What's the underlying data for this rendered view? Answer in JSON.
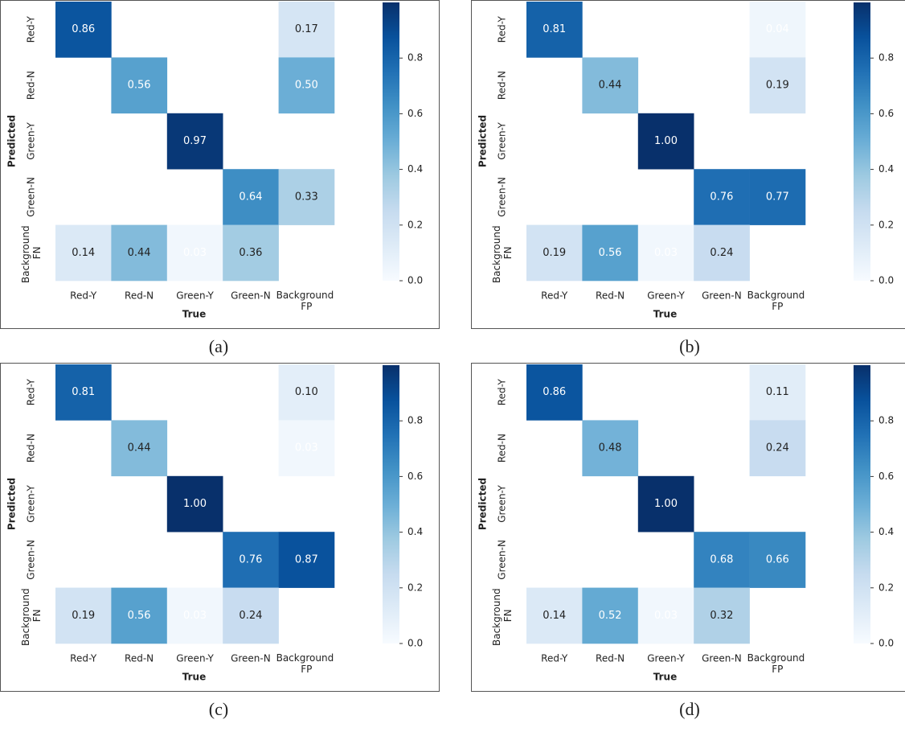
{
  "chart_data": [
    {
      "type": "heatmap",
      "caption": "(a)",
      "x_label": "True",
      "y_label": "Predicted",
      "colormap": "Blues",
      "x_categories": [
        "Red-Y",
        "Red-N",
        "Green-Y",
        "Green-N",
        "Background FP"
      ],
      "y_categories": [
        "Red-Y",
        "Red-N",
        "Green-Y",
        "Green-N",
        "Background FN"
      ],
      "values": [
        [
          0.86,
          null,
          null,
          null,
          0.17
        ],
        [
          null,
          0.56,
          null,
          null,
          0.5
        ],
        [
          null,
          null,
          0.97,
          null,
          null
        ],
        [
          null,
          null,
          null,
          0.64,
          0.33
        ],
        [
          0.14,
          0.44,
          0.03,
          0.36,
          null
        ]
      ],
      "value_labels": [
        [
          "0.86",
          null,
          null,
          null,
          "0.17"
        ],
        [
          null,
          "0.56",
          null,
          null,
          "0.50"
        ],
        [
          null,
          null,
          "0.97",
          null,
          null
        ],
        [
          null,
          null,
          null,
          "0.64",
          "0.33"
        ],
        [
          "0.14",
          "0.44",
          "0.03",
          "0.36",
          null
        ]
      ],
      "zlim": [
        0,
        1
      ],
      "colorbar_ticks": [
        {
          "value": 0,
          "label": "0.0"
        },
        {
          "value": 0.2,
          "label": "0.2"
        },
        {
          "value": 0.4,
          "label": "0.4"
        },
        {
          "value": 0.6,
          "label": "0.6"
        },
        {
          "value": 0.8,
          "label": "0.8"
        }
      ]
    },
    {
      "type": "heatmap",
      "caption": "(b)",
      "x_label": "True",
      "y_label": "Predicted",
      "colormap": "Blues",
      "x_categories": [
        "Red-Y",
        "Red-N",
        "Green-Y",
        "Green-N",
        "Background FP"
      ],
      "y_categories": [
        "Red-Y",
        "Red-N",
        "Green-Y",
        "Green-N",
        "Background FN"
      ],
      "values": [
        [
          0.81,
          null,
          null,
          null,
          0.04
        ],
        [
          null,
          0.44,
          null,
          null,
          0.19
        ],
        [
          null,
          null,
          1,
          null,
          null
        ],
        [
          null,
          null,
          null,
          0.76,
          0.77
        ],
        [
          0.19,
          0.56,
          0.03,
          0.24,
          null
        ]
      ],
      "value_labels": [
        [
          "0.81",
          null,
          null,
          null,
          "0.04"
        ],
        [
          null,
          "0.44",
          null,
          null,
          "0.19"
        ],
        [
          null,
          null,
          "1.00",
          null,
          null
        ],
        [
          null,
          null,
          null,
          "0.76",
          "0.77"
        ],
        [
          "0.19",
          "0.56",
          "0.03",
          "0.24",
          null
        ]
      ],
      "zlim": [
        0,
        1
      ],
      "colorbar_ticks": [
        {
          "value": 0,
          "label": "0.0"
        },
        {
          "value": 0.2,
          "label": "0.2"
        },
        {
          "value": 0.4,
          "label": "0.4"
        },
        {
          "value": 0.6,
          "label": "0.6"
        },
        {
          "value": 0.8,
          "label": "0.8"
        }
      ]
    },
    {
      "type": "heatmap",
      "caption": "(c)",
      "x_label": "True",
      "y_label": "Predicted",
      "colormap": "Blues",
      "x_categories": [
        "Red-Y",
        "Red-N",
        "Green-Y",
        "Green-N",
        "Background FP"
      ],
      "y_categories": [
        "Red-Y",
        "Red-N",
        "Green-Y",
        "Green-N",
        "Background FN"
      ],
      "values": [
        [
          0.81,
          null,
          null,
          null,
          0.1
        ],
        [
          null,
          0.44,
          null,
          null,
          0.03
        ],
        [
          null,
          null,
          1,
          null,
          null
        ],
        [
          null,
          null,
          null,
          0.76,
          0.87
        ],
        [
          0.19,
          0.56,
          0.03,
          0.24,
          null
        ]
      ],
      "value_labels": [
        [
          "0.81",
          null,
          null,
          null,
          "0.10"
        ],
        [
          null,
          "0.44",
          null,
          null,
          "0.03"
        ],
        [
          null,
          null,
          "1.00",
          null,
          null
        ],
        [
          null,
          null,
          null,
          "0.76",
          "0.87"
        ],
        [
          "0.19",
          "0.56",
          "0.03",
          "0.24",
          null
        ]
      ],
      "zlim": [
        0,
        1
      ],
      "colorbar_ticks": [
        {
          "value": 0,
          "label": "0.0"
        },
        {
          "value": 0.2,
          "label": "0.2"
        },
        {
          "value": 0.4,
          "label": "0.4"
        },
        {
          "value": 0.6,
          "label": "0.6"
        },
        {
          "value": 0.8,
          "label": "0.8"
        }
      ]
    },
    {
      "type": "heatmap",
      "caption": "(d)",
      "x_label": "True",
      "y_label": "Predicted",
      "colormap": "Blues",
      "x_categories": [
        "Red-Y",
        "Red-N",
        "Green-Y",
        "Green-N",
        "Background FP"
      ],
      "y_categories": [
        "Red-Y",
        "Red-N",
        "Green-Y",
        "Green-N",
        "Background FN"
      ],
      "values": [
        [
          0.86,
          null,
          null,
          null,
          0.11
        ],
        [
          null,
          0.48,
          null,
          null,
          0.24
        ],
        [
          null,
          null,
          1,
          null,
          null
        ],
        [
          null,
          null,
          null,
          0.68,
          0.66
        ],
        [
          0.14,
          0.52,
          0.03,
          0.32,
          null
        ]
      ],
      "value_labels": [
        [
          "0.86",
          null,
          null,
          null,
          "0.11"
        ],
        [
          null,
          "0.48",
          null,
          null,
          "0.24"
        ],
        [
          null,
          null,
          "1.00",
          null,
          null
        ],
        [
          null,
          null,
          null,
          "0.68",
          "0.66"
        ],
        [
          "0.14",
          "0.52",
          "0.03",
          "0.32",
          null
        ]
      ],
      "zlim": [
        0,
        1
      ],
      "colorbar_ticks": [
        {
          "value": 0,
          "label": "0.0"
        },
        {
          "value": 0.2,
          "label": "0.2"
        },
        {
          "value": 0.4,
          "label": "0.4"
        },
        {
          "value": 0.6,
          "label": "0.6"
        },
        {
          "value": 0.8,
          "label": "0.8"
        }
      ]
    }
  ]
}
